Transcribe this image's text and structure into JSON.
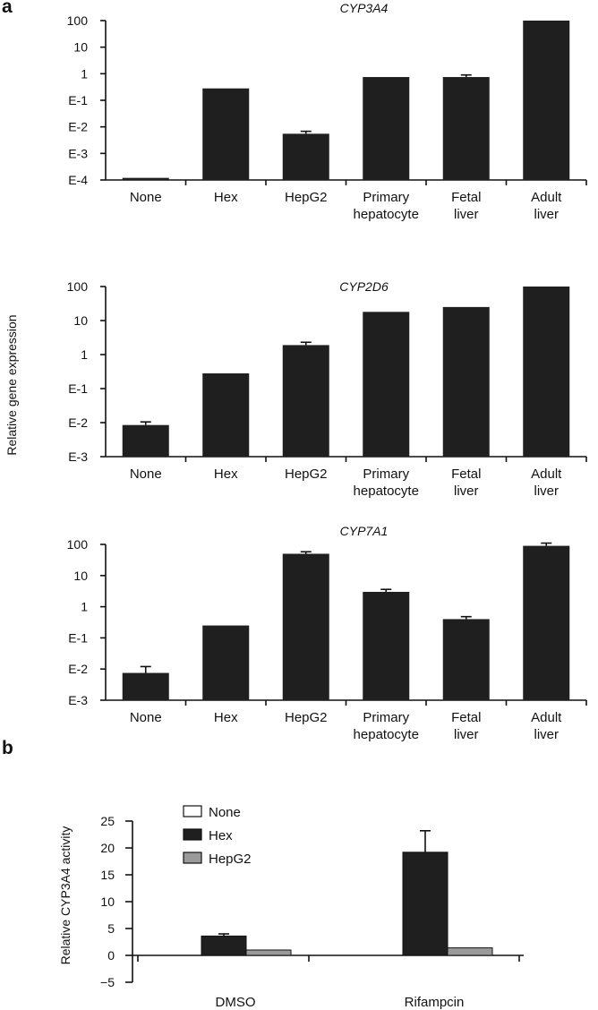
{
  "panel_labels": [
    "a",
    "b"
  ],
  "shared_ylabel_a": "Relative gene expression",
  "chart_data": [
    {
      "type": "bar",
      "title": "CYP3A4",
      "categories": [
        [
          "None"
        ],
        [
          "Hex"
        ],
        [
          "HepG2"
        ],
        [
          "Primary",
          "hepatocyte"
        ],
        [
          "Fetal",
          "liver"
        ],
        [
          "Adult",
          "liver"
        ]
      ],
      "ytick_labels": [
        "E-4",
        "E-3",
        "E-2",
        "E-1",
        "1",
        "10",
        "100"
      ],
      "ylim_log10": [
        -4,
        2
      ],
      "scale": "log",
      "values": [
        0.00012,
        0.28,
        0.0055,
        0.75,
        0.75,
        100
      ],
      "error_top": [
        null,
        null,
        0.0068,
        null,
        0.9,
        null
      ],
      "color": "#1f1f1f"
    },
    {
      "type": "bar",
      "title": "CYP2D6",
      "categories": [
        [
          "None"
        ],
        [
          "Hex"
        ],
        [
          "HepG2"
        ],
        [
          "Primary",
          "hepatocyte"
        ],
        [
          "Fetal",
          "liver"
        ],
        [
          "Adult",
          "liver"
        ]
      ],
      "ytick_labels": [
        "E-3",
        "E-2",
        "E-1",
        "1",
        "10",
        "100"
      ],
      "ylim_log10": [
        -3,
        2
      ],
      "scale": "log",
      "values": [
        0.0085,
        0.28,
        1.9,
        18,
        25,
        100
      ],
      "error_top": [
        0.0105,
        null,
        2.3,
        null,
        null,
        null
      ],
      "color": "#1f1f1f"
    },
    {
      "type": "bar",
      "title": "CYP7A1",
      "categories": [
        [
          "None"
        ],
        [
          "Hex"
        ],
        [
          "HepG2"
        ],
        [
          "Primary",
          "hepatocyte"
        ],
        [
          "Fetal",
          "liver"
        ],
        [
          "Adult",
          "liver"
        ]
      ],
      "ytick_labels": [
        "E-3",
        "E-2",
        "E-1",
        "1",
        "10",
        "100"
      ],
      "ylim_log10": [
        -3,
        2
      ],
      "scale": "log",
      "values": [
        0.0075,
        0.25,
        50,
        3,
        0.4,
        90
      ],
      "error_top": [
        0.012,
        null,
        58,
        3.6,
        0.48,
        110
      ],
      "color": "#1f1f1f"
    },
    {
      "type": "bar",
      "title": "",
      "ylabel": "Relative CYP3A4 activity",
      "categories": [
        "DMSO",
        "Rifampcin"
      ],
      "ytick_labels": [
        "−5",
        "0",
        "5",
        "10",
        "15",
        "20",
        "25"
      ],
      "ylim": [
        -5,
        25
      ],
      "legend_position": "top-left",
      "series": [
        {
          "name": "None",
          "color": "#ffffff",
          "values": [
            0,
            0
          ],
          "error": [
            null,
            null
          ]
        },
        {
          "name": "Hex",
          "color": "#1f1f1f",
          "values": [
            3.6,
            19.2
          ],
          "error": [
            0.4,
            4.0
          ]
        },
        {
          "name": "HepG2",
          "color": "#9a9a9a",
          "values": [
            1.0,
            1.4
          ],
          "error": [
            null,
            null
          ]
        }
      ]
    }
  ]
}
